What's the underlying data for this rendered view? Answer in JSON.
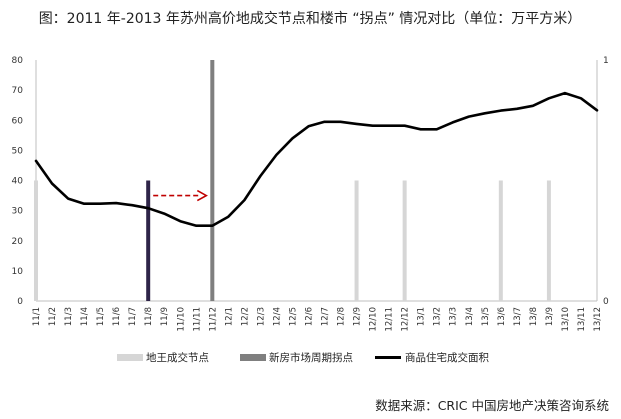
{
  "title": "图：2011 年-2013 年苏州高价地成交节点和楼市 “拐点” 情况对比（单位：万平方米）",
  "source": "数据来源：CRIC 中国房地产决策咨询系统",
  "colors": {
    "land": "#d6d6d6",
    "turning": "#7f7f7f",
    "highlight": "#2e2448",
    "line": "#000000",
    "arrow": "#c00000"
  },
  "chart_data": {
    "type": "line",
    "x": [
      "11/1",
      "11/2",
      "11/3",
      "11/4",
      "11/5",
      "11/6",
      "11/7",
      "11/8",
      "11/9",
      "11/10",
      "11/11",
      "11/12",
      "12/1",
      "12/2",
      "12/3",
      "12/4",
      "12/5",
      "12/6",
      "12/7",
      "12/8",
      "12/9",
      "12/10",
      "12/11",
      "12/12",
      "13/1",
      "13/2",
      "13/3",
      "13/4",
      "13/5",
      "13/6",
      "13/7",
      "13/8",
      "13/9",
      "13/10",
      "13/11",
      "13/12"
    ],
    "ylim": [
      0,
      80
    ],
    "yticks": [
      "0",
      "10",
      "20",
      "30",
      "40",
      "50",
      "60",
      "70",
      "80"
    ],
    "y2lim": [
      0,
      1
    ],
    "y2ticks": [
      "0",
      "1"
    ],
    "series": [
      {
        "name": "商品住宅成交面积",
        "type": "line",
        "axis": "left",
        "values": [
          46.5,
          39,
          34,
          32.3,
          32.3,
          32.5,
          31.8,
          30.8,
          29,
          26.5,
          25,
          25,
          28,
          33.5,
          41.5,
          48.5,
          54,
          58,
          59.5,
          59.5,
          58.8,
          58.2,
          58.2,
          58.2,
          57,
          57,
          59.3,
          61.2,
          62.3,
          63.2,
          63.8,
          64.8,
          67.3,
          69,
          67.3,
          63.3
        ]
      },
      {
        "name": "地王成交节点",
        "type": "bar",
        "axis": "left",
        "values": [
          40,
          0,
          0,
          0,
          0,
          0,
          0,
          0,
          0,
          0,
          0,
          0,
          0,
          0,
          0,
          0,
          0,
          0,
          0,
          0,
          40,
          0,
          0,
          40,
          0,
          0,
          0,
          0,
          0,
          40,
          0,
          0,
          40,
          0,
          0,
          0
        ]
      },
      {
        "name": "新房市场周期拐点",
        "type": "bar",
        "axis": "right",
        "values": [
          0,
          0,
          0,
          0,
          0,
          0,
          0,
          0,
          0,
          0,
          0,
          1,
          0,
          0,
          0,
          0,
          0,
          0,
          0,
          0,
          0,
          0,
          0,
          0,
          0,
          0,
          0,
          0,
          0,
          0,
          0,
          0,
          0,
          0,
          0,
          0
        ]
      }
    ],
    "highlight_bar": {
      "category": "11/8",
      "value": 40
    },
    "annotation": {
      "type": "arrow",
      "from": "11/8",
      "to": "11/12",
      "y": 35
    },
    "legend": [
      "地王成交节点",
      "新房市场周期拐点",
      "商品住宅成交面积"
    ],
    "legend_position": "bottom",
    "grid": false
  }
}
